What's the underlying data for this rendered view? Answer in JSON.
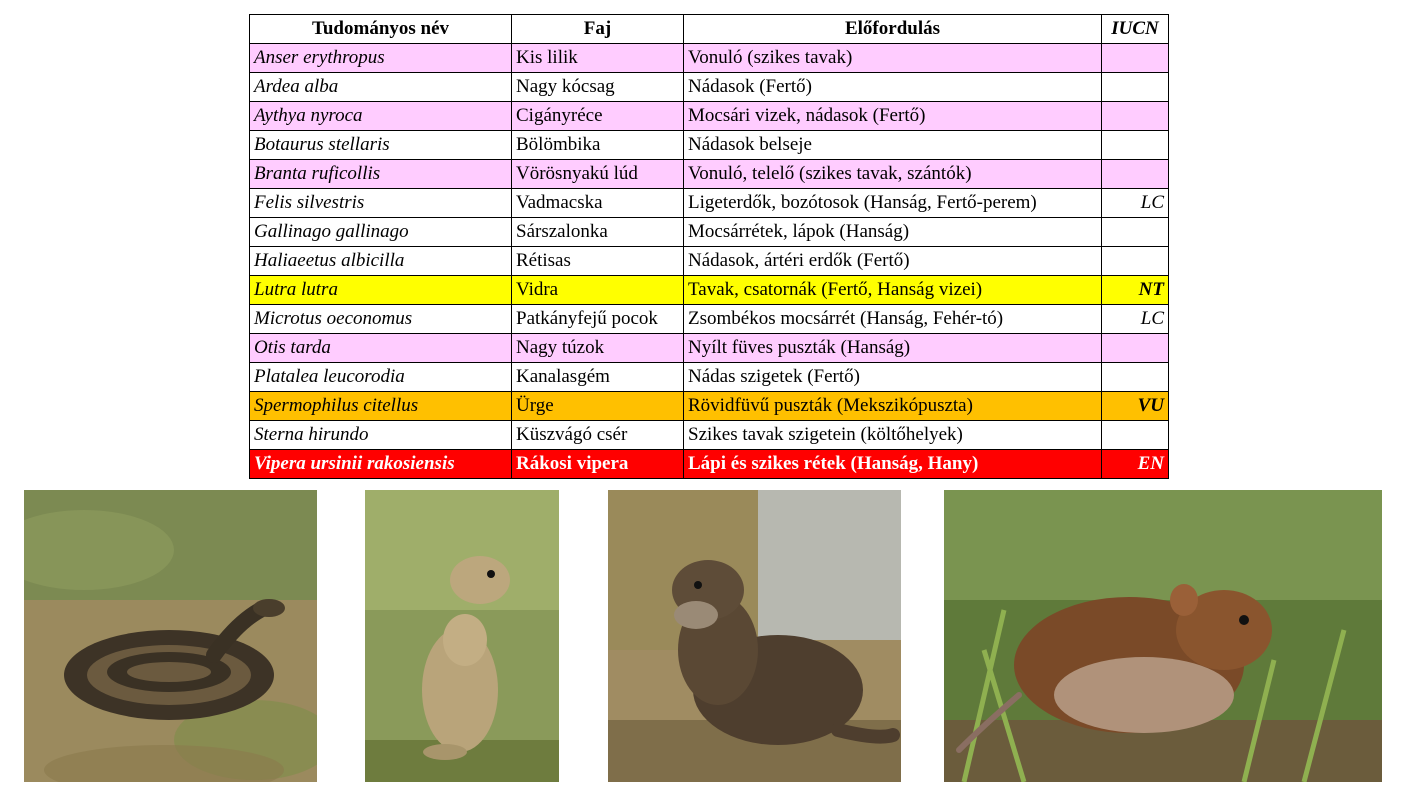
{
  "table": {
    "headers": {
      "scientific": "Tudományos név",
      "species": "Faj",
      "occurrence": "Előfordulás",
      "iucn": "IUCN"
    },
    "rows": [
      {
        "scientific": "Anser erythropus",
        "species": "Kis lilik",
        "occurrence": "Vonuló (szikes tavak)",
        "iucn": "",
        "color": "pink"
      },
      {
        "scientific": "Ardea alba",
        "species": "Nagy kócsag",
        "occurrence": "Nádasok (Fertő)",
        "iucn": "",
        "color": "white"
      },
      {
        "scientific": "Aythya nyroca",
        "species": "Cigányréce",
        "occurrence": "Mocsári vizek, nádasok (Fertő)",
        "iucn": "",
        "color": "pink"
      },
      {
        "scientific": "Botaurus stellaris",
        "species": "Bölömbika",
        "occurrence": "Nádasok belseje",
        "iucn": "",
        "color": "white"
      },
      {
        "scientific": "Branta ruficollis",
        "species": "Vörösnyakú lúd",
        "occurrence": "Vonuló, telelő (szikes tavak, szántók)",
        "iucn": "",
        "color": "pink"
      },
      {
        "scientific": "Felis silvestris",
        "species": "Vadmacska",
        "occurrence": "Ligeterdők, bozótosok (Hanság, Fertő-perem)",
        "iucn": "LC",
        "color": "white"
      },
      {
        "scientific": "Gallinago gallinago",
        "species": "Sárszalonka",
        "occurrence": "Mocsárrétek, lápok (Hanság)",
        "iucn": "",
        "color": "white"
      },
      {
        "scientific": "Haliaeetus albicilla",
        "species": "Rétisas",
        "occurrence": "Nádasok, ártéri erdők (Fertő)",
        "iucn": "",
        "color": "white"
      },
      {
        "scientific": "Lutra lutra",
        "species": "Vidra",
        "occurrence": "Tavak, csatornák (Fertő, Hanság vizei)",
        "iucn": "NT",
        "color": "yellow"
      },
      {
        "scientific": "Microtus oeconomus",
        "species": "Patkányfejű pocok",
        "occurrence": "Zsombékos mocsárrét (Hanság, Fehér-tó)",
        "iucn": "LC",
        "color": "white"
      },
      {
        "scientific": "Otis tarda",
        "species": "Nagy túzok",
        "occurrence": "Nyílt füves puszták (Hanság)",
        "iucn": "",
        "color": "pink"
      },
      {
        "scientific": "Platalea leucorodia",
        "species": "Kanalasgém",
        "occurrence": "Nádas szigetek (Fertő)",
        "iucn": "",
        "color": "white"
      },
      {
        "scientific": "Spermophilus citellus",
        "species": "Ürge",
        "occurrence": "Rövidfüvű puszták (Mekszikópuszta)",
        "iucn": "VU",
        "color": "orange"
      },
      {
        "scientific": "Sterna hirundo",
        "species": "Küszvágó csér",
        "occurrence": "Szikes tavak szigetein (költőhelyek)",
        "iucn": "",
        "color": "white"
      },
      {
        "scientific": "Vipera ursinii rakosiensis",
        "species": "Rákosi vipera",
        "occurrence": "Lápi és szikes rétek (Hanság, Hany)",
        "iucn": "EN",
        "color": "red"
      }
    ]
  },
  "photos": [
    {
      "subject": "viper-photo"
    },
    {
      "subject": "ground-squirrel-photo"
    },
    {
      "subject": "otter-photo"
    },
    {
      "subject": "vole-photo"
    }
  ]
}
